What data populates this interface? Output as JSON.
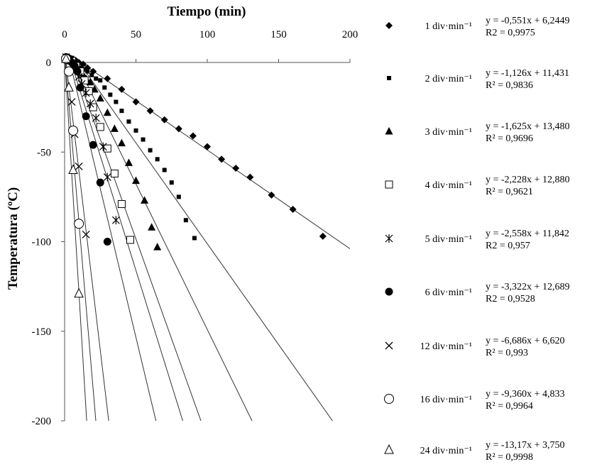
{
  "chart_data": {
    "type": "scatter",
    "title": "",
    "xlabel": "Tiempo (min)",
    "ylabel": "Temperatura (ºC)",
    "xlim": [
      0,
      200
    ],
    "ylim": [
      -200,
      0
    ],
    "x_ticks": [
      "0",
      "50",
      "100",
      "150",
      "200"
    ],
    "y_ticks": [
      "0",
      "-50",
      "-100",
      "-150",
      "-200"
    ],
    "x_axis_position": "top",
    "grid": false,
    "legend_position": "right",
    "series": [
      {
        "name": "1 div·min⁻¹",
        "marker": "diamond",
        "equation": "y = -0,551x + 6,2449",
        "r2": "R2 = 0,9975",
        "slope": -0.551,
        "intercept": 6.2449,
        "x": [
          0,
          1,
          2,
          3,
          4,
          5,
          6,
          8,
          10,
          13,
          16,
          20,
          30,
          40,
          50,
          60,
          70,
          80,
          90,
          100,
          110,
          120,
          130,
          145,
          160,
          181
        ],
        "y": [
          3,
          3,
          3,
          3,
          2,
          2,
          2,
          1,
          0,
          -1,
          -3,
          -5,
          -9,
          -15,
          -22,
          -27,
          -32,
          -37,
          -41,
          -47,
          -54,
          -59,
          -64,
          -74,
          -82,
          -97
        ]
      },
      {
        "name": "2 div·min⁻¹",
        "marker": "square-small",
        "equation": "y = -1,126x + 11,431",
        "r2": "R² = 0,9836",
        "slope": -1.126,
        "intercept": 11.431,
        "x": [
          1,
          3,
          5,
          7,
          9,
          11,
          13,
          16,
          19,
          22,
          25,
          28,
          32,
          36,
          40,
          45,
          50,
          55,
          60,
          65,
          70,
          75,
          80,
          85,
          91
        ],
        "y": [
          3,
          2,
          1,
          -1,
          -2,
          -3,
          -4,
          -5,
          -7,
          -9,
          -10,
          -14,
          -18,
          -22,
          -27,
          -33,
          -38,
          -43,
          -49,
          -54,
          -60,
          -67,
          -75,
          -88,
          -98
        ]
      },
      {
        "name": "3 div·min⁻¹",
        "marker": "triangle-filled",
        "equation": "y = -1,625x + 13,480",
        "r2": "R² = 0,9696",
        "slope": -1.625,
        "intercept": 13.48,
        "x": [
          1,
          3,
          5,
          7,
          9,
          11,
          13,
          15,
          18,
          21,
          25,
          30,
          35,
          40,
          45,
          50,
          56,
          61,
          65
        ],
        "y": [
          3,
          2,
          1,
          -1,
          -3,
          -5,
          -7,
          -9,
          -11,
          -15,
          -20,
          -28,
          -37,
          -45,
          -56,
          -66,
          -77,
          -92,
          -103
        ]
      },
      {
        "name": "4 div·min⁻¹",
        "marker": "square-open",
        "equation": "y = -2,228x + 12,880",
        "r2": "R² = 0,9621",
        "slope": -2.228,
        "intercept": 12.88,
        "x": [
          2,
          5,
          8,
          11,
          14,
          17,
          20,
          25,
          30,
          35,
          40,
          46
        ],
        "y": [
          2,
          1,
          -2,
          -5,
          -10,
          -16,
          -25,
          -36,
          -48,
          -62,
          -79,
          -99
        ]
      },
      {
        "name": "5 div·min⁻¹",
        "marker": "asterisk",
        "equation": "y = -2,558x + 11,842",
        "r2": "R2 = 0,957",
        "slope": -2.558,
        "intercept": 11.842,
        "x": [
          2,
          4,
          6,
          8,
          10,
          12,
          15,
          18,
          22,
          27,
          30,
          36
        ],
        "y": [
          2,
          1,
          -1,
          -4,
          -8,
          -12,
          -17,
          -23,
          -31,
          -47,
          -64,
          -88
        ]
      },
      {
        "name": "6 div·min⁻¹",
        "marker": "circle-filled",
        "equation": "y = -3,322x + 12,689",
        "r2": "R2 = 0,9528",
        "slope": -3.322,
        "intercept": 12.689,
        "x": [
          1,
          3,
          5,
          7,
          9,
          11,
          15,
          20,
          25,
          30
        ],
        "y": [
          3,
          2,
          0,
          -2,
          -5,
          -14,
          -30,
          -46,
          -67,
          -100
        ]
      },
      {
        "name": "12 div·min⁻¹",
        "marker": "x-cross",
        "equation": "y = -6,686x + 6,620",
        "r2": "R² = 0,993",
        "slope": -6.686,
        "intercept": 6.62,
        "x": [
          1,
          3,
          5,
          7,
          10,
          15
        ],
        "y": [
          3,
          1,
          -22,
          -40,
          -58,
          -96
        ]
      },
      {
        "name": "16 div·min⁻¹",
        "marker": "circle-open",
        "equation": "y = -9,360x + 4,833",
        "r2": "R² = 0,9964",
        "slope": -9.36,
        "intercept": 4.833,
        "x": [
          1,
          3,
          6,
          10
        ],
        "y": [
          2,
          -5,
          -38,
          -90
        ]
      },
      {
        "name": "24 div·min⁻¹",
        "marker": "triangle-open",
        "equation": "y = -13,17x + 3,750",
        "r2": "R² = 0,9998",
        "slope": -13.17,
        "intercept": 3.75,
        "x": [
          1,
          3,
          6,
          10
        ],
        "y": [
          2,
          -14,
          -60,
          -129
        ]
      }
    ]
  }
}
